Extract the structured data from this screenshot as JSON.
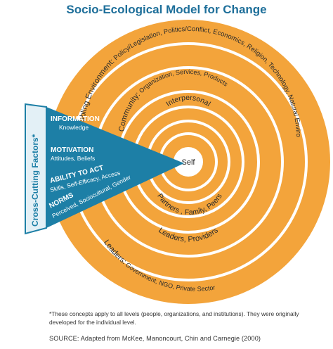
{
  "title": "Socio-Ecological Model for Change",
  "colors": {
    "orange": "#f3a43b",
    "orange_dark": "#e8912a",
    "teal": "#1d7fa6",
    "teal_light": "#e3f0f6",
    "title": "#1e6f9a"
  },
  "rings": {
    "enabling": {
      "label": "Enabling Environment:",
      "detail": " Policy/Legislation, Politics/Conflict, Economics, Religion, Technology, Natural Environment"
    },
    "leaders": {
      "label": "Leaders:",
      "detail": " Government, NGO, Private Sector"
    },
    "community": {
      "label": "Community:",
      "detail": " Organization, Services, Products"
    },
    "community_bottom": {
      "label": "Leaders, Providers"
    },
    "interpersonal": {
      "label": "Interpersonal"
    },
    "interpersonal_bottom": {
      "label": "Partners , Family, Peers"
    },
    "self": {
      "label": "Self"
    }
  },
  "crosscutting": {
    "label": "Cross-Cutting Factors*",
    "factors": [
      {
        "heading": "INFORMATION",
        "detail": "Knowledge"
      },
      {
        "heading": "MOTIVATION",
        "detail": "Attitudes, Beliefs"
      },
      {
        "heading": "ABILITY TO ACT",
        "detail": "Skills, Self-Efficacy, Access"
      },
      {
        "heading": "NORMS",
        "detail": "Perceived, Sociocultural, Gender"
      }
    ]
  },
  "footnote": "*These concepts apply to all levels (people, organizations, and institutions). They were originally developed for the individual level.",
  "source": "SOURCE: Adapted from McKee, Manoncourt, Chin and Carnegie (2000)"
}
